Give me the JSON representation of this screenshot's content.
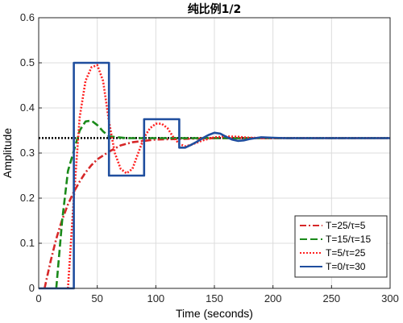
{
  "chart_data": {
    "type": "line",
    "title": "纯比例1/2",
    "xlabel": "Time (seconds)",
    "ylabel": "Amplitude",
    "xlim": [
      0,
      300
    ],
    "ylim": [
      0,
      0.6
    ],
    "xticks": [
      "0",
      "50",
      "100",
      "150",
      "200",
      "250",
      "300"
    ],
    "yticks": [
      "0",
      "0.1",
      "0.2",
      "0.3",
      "0.4",
      "0.5",
      "0.6"
    ],
    "grid": true,
    "legend_position": "bottom-right",
    "reference_line": {
      "y": 0.3333,
      "color": "#000000",
      "style": "dotted"
    },
    "series": [
      {
        "name": "T=25/τ=5",
        "color": "#d62728",
        "style": "dashdot",
        "x": [
          5,
          10,
          15,
          20,
          25,
          30,
          35,
          40,
          45,
          50,
          60,
          70,
          80,
          100,
          150,
          200,
          250,
          300
        ],
        "y": [
          0,
          0.058,
          0.11,
          0.152,
          0.186,
          0.214,
          0.237,
          0.257,
          0.273,
          0.286,
          0.303,
          0.317,
          0.324,
          0.33,
          0.333,
          0.333,
          0.333,
          0.333
        ]
      },
      {
        "name": "T=15/τ=15",
        "color": "#1a8a1a",
        "style": "dashed",
        "x": [
          15,
          20,
          25,
          30,
          35,
          40,
          45,
          50,
          55,
          60,
          75,
          90,
          120,
          150,
          200,
          250,
          300
        ],
        "y": [
          0,
          0.15,
          0.26,
          0.305,
          0.35,
          0.37,
          0.372,
          0.362,
          0.348,
          0.337,
          0.333,
          0.333,
          0.333,
          0.333,
          0.333,
          0.333,
          0.333
        ]
      },
      {
        "name": "T=5/τ=25",
        "color": "#ff2020",
        "style": "dotted",
        "x": [
          25,
          30,
          35,
          40,
          45,
          50,
          55,
          60,
          65,
          70,
          75,
          80,
          85,
          90,
          95,
          100,
          105,
          110,
          115,
          120,
          125,
          130,
          140,
          150,
          160,
          170,
          180,
          200,
          220,
          250,
          300
        ],
        "y": [
          0,
          0.2,
          0.38,
          0.46,
          0.49,
          0.495,
          0.46,
          0.37,
          0.3,
          0.265,
          0.255,
          0.265,
          0.3,
          0.335,
          0.355,
          0.365,
          0.365,
          0.355,
          0.335,
          0.32,
          0.315,
          0.318,
          0.328,
          0.335,
          0.337,
          0.336,
          0.334,
          0.333,
          0.333,
          0.333,
          0.333
        ]
      },
      {
        "name": "T=0/τ=30",
        "color": "#1f4e9e",
        "style": "solid",
        "x": [
          0,
          30,
          30,
          60,
          60,
          90,
          90,
          120,
          120,
          125,
          130,
          135,
          140,
          145,
          150,
          155,
          160,
          165,
          170,
          175,
          180,
          190,
          200,
          210,
          220,
          240,
          260,
          300
        ],
        "y": [
          0,
          0,
          0.5,
          0.5,
          0.25,
          0.25,
          0.375,
          0.375,
          0.312,
          0.312,
          0.318,
          0.325,
          0.333,
          0.34,
          0.345,
          0.343,
          0.336,
          0.33,
          0.327,
          0.328,
          0.331,
          0.335,
          0.334,
          0.333,
          0.333,
          0.333,
          0.333,
          0.333
        ]
      }
    ]
  }
}
